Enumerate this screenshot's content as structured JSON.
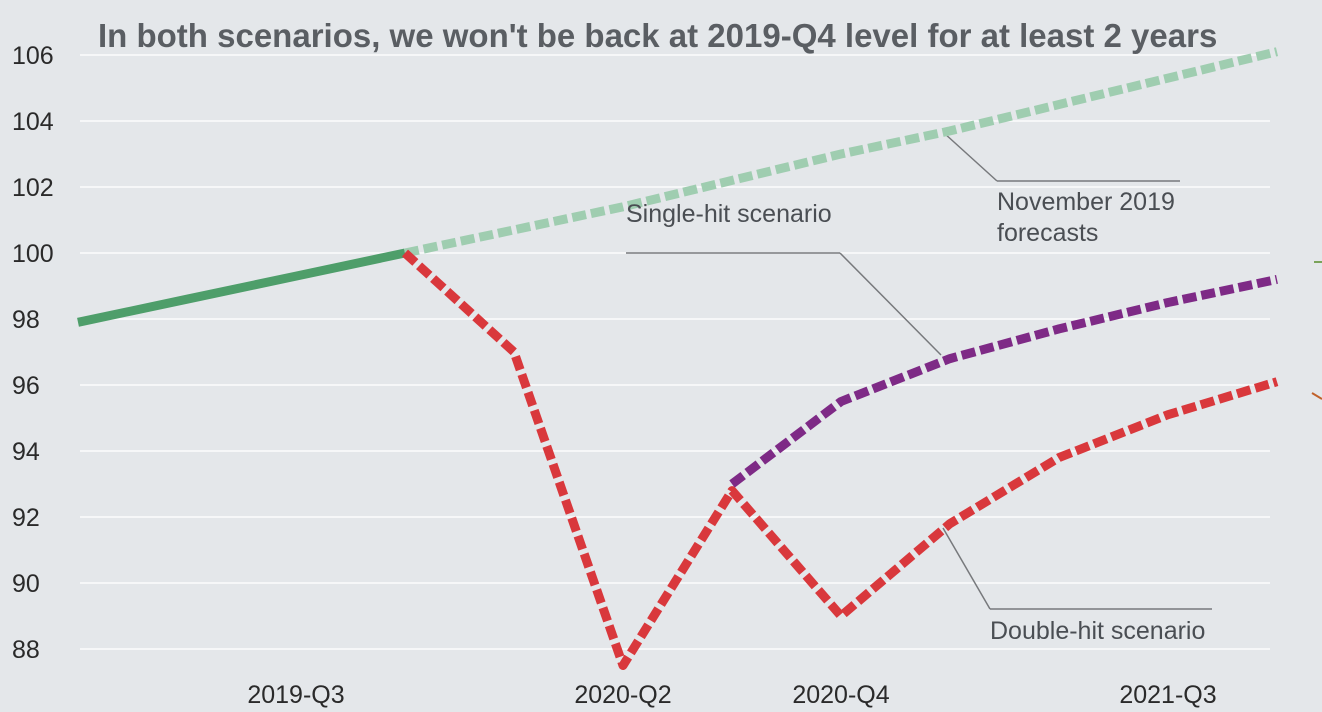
{
  "chart_data": {
    "type": "line",
    "title": "In both scenarios, we won't be back at 2019-Q4 level for at least 2 years",
    "xlabel": "",
    "ylabel": "",
    "ylim": [
      87,
      106
    ],
    "y_ticks": [
      106,
      104,
      102,
      100,
      98,
      96,
      94,
      92,
      90,
      88
    ],
    "x_tick_labels": [
      "2019-Q3",
      "2020-Q2",
      "2020-Q4",
      "2021-Q3"
    ],
    "x": [
      "2019-Q1",
      "2019-Q2",
      "2019-Q3",
      "2019-Q4",
      "2020-Q1",
      "2020-Q2",
      "2020-Q3",
      "2020-Q4",
      "2021-Q1",
      "2021-Q2",
      "2021-Q3",
      "2021-Q4"
    ],
    "grid": true,
    "series": [
      {
        "key": "history",
        "color": "#4e9e6a",
        "dashed": false,
        "values": [
          97.9,
          98.6,
          99.3,
          100.0,
          null,
          null,
          null,
          null,
          null,
          null,
          null,
          null
        ]
      },
      {
        "key": "november",
        "name": "November 2019 forecasts",
        "color": "#9fcdb0",
        "dashed": true,
        "values": [
          null,
          null,
          null,
          100.0,
          100.7,
          101.4,
          102.2,
          103.0,
          103.7,
          104.5,
          105.3,
          106.1
        ]
      },
      {
        "key": "single",
        "name": "Single-hit scenario",
        "color": "#7e2a86",
        "dashed": true,
        "values": [
          null,
          null,
          null,
          null,
          null,
          null,
          93.0,
          95.5,
          96.8,
          97.7,
          98.5,
          99.2
        ]
      },
      {
        "key": "double",
        "name": "Double-hit scenario",
        "color": "#d9383c",
        "dashed": true,
        "values": [
          null,
          null,
          null,
          100.0,
          97.0,
          87.5,
          92.8,
          89.0,
          91.8,
          93.8,
          95.1,
          96.1
        ]
      }
    ],
    "annotations": [
      {
        "key": "november",
        "text_lines": [
          "November 2019",
          "forecasts"
        ]
      },
      {
        "key": "single",
        "text_lines": [
          "Single-hit scenario"
        ]
      },
      {
        "key": "double",
        "text_lines": [
          "Double-hit scenario"
        ]
      }
    ]
  }
}
